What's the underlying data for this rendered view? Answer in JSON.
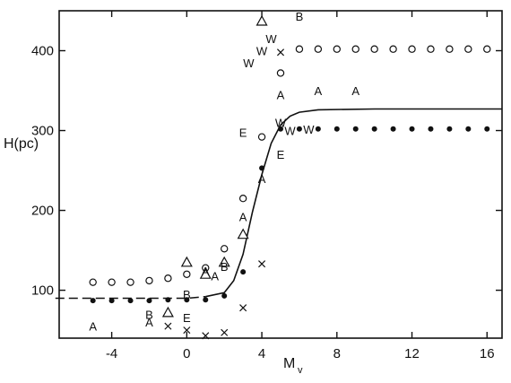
{
  "chart_data": {
    "type": "scatter",
    "title": "",
    "xlabel": {
      "main": "M",
      "sub": "v"
    },
    "ylabel": "H(pc)",
    "xlim": [
      -6.8,
      16.8
    ],
    "ylim": [
      40,
      450
    ],
    "xticks": [
      -4,
      0,
      4,
      8,
      12,
      16
    ],
    "xtick_labels": [
      "-4",
      "0",
      "4",
      "8",
      "12",
      "16"
    ],
    "yticks": [
      100,
      200,
      300,
      400
    ],
    "ytick_labels": [
      "100",
      "200",
      "300",
      "400"
    ],
    "grid": false,
    "legend": "none",
    "series": [
      {
        "marker": "open-circle",
        "points": [
          [
            -5,
            110
          ],
          [
            -4,
            110
          ],
          [
            -3,
            110
          ],
          [
            -2,
            112
          ],
          [
            -1,
            115
          ],
          [
            0,
            120
          ],
          [
            1,
            128
          ],
          [
            2,
            152
          ],
          [
            3,
            215
          ],
          [
            4,
            292
          ],
          [
            5,
            372
          ],
          [
            6,
            402
          ],
          [
            7,
            402
          ],
          [
            8,
            402
          ],
          [
            9,
            402
          ],
          [
            10,
            402
          ],
          [
            11,
            402
          ],
          [
            12,
            402
          ],
          [
            13,
            402
          ],
          [
            14,
            402
          ],
          [
            15,
            402
          ],
          [
            16,
            402
          ]
        ]
      },
      {
        "marker": "filled-dot",
        "points": [
          [
            -5,
            87
          ],
          [
            -4,
            87
          ],
          [
            -3,
            87
          ],
          [
            -2,
            87
          ],
          [
            -1,
            88
          ],
          [
            0,
            88
          ],
          [
            1,
            88
          ],
          [
            2,
            93
          ],
          [
            3,
            123
          ],
          [
            4,
            253
          ],
          [
            5,
            302
          ],
          [
            6,
            302
          ],
          [
            7,
            302
          ],
          [
            8,
            302
          ],
          [
            9,
            302
          ],
          [
            10,
            302
          ],
          [
            11,
            302
          ],
          [
            12,
            302
          ],
          [
            13,
            302
          ],
          [
            14,
            302
          ],
          [
            15,
            302
          ],
          [
            16,
            302
          ]
        ]
      },
      {
        "marker": "cross",
        "points": [
          [
            -1,
            55
          ],
          [
            0,
            50
          ],
          [
            1,
            43
          ],
          [
            2,
            47
          ],
          [
            3,
            78
          ],
          [
            4,
            133
          ],
          [
            5,
            398
          ]
        ]
      },
      {
        "marker": "triangle",
        "points": [
          [
            0,
            135
          ],
          [
            1,
            120
          ],
          [
            2,
            135
          ],
          [
            3,
            170
          ],
          [
            4,
            437
          ],
          [
            -1,
            72
          ]
        ]
      },
      {
        "marker": "letter",
        "points": [
          [
            -5,
            55,
            "A"
          ],
          [
            -2,
            70,
            "B"
          ],
          [
            -2,
            60,
            "A"
          ],
          [
            0,
            95,
            "B"
          ],
          [
            0,
            66,
            "E"
          ],
          [
            1,
            124,
            "A"
          ],
          [
            1.5,
            118,
            "A"
          ],
          [
            2,
            130,
            "B"
          ],
          [
            4,
            240,
            "A"
          ],
          [
            3,
            192,
            "A"
          ],
          [
            3,
            298,
            "E"
          ],
          [
            5,
            270,
            "E"
          ],
          [
            3.3,
            385,
            "W"
          ],
          [
            4,
            400,
            "W"
          ],
          [
            4.5,
            415,
            "W"
          ],
          [
            5,
            345,
            "A"
          ],
          [
            5,
            310,
            "W"
          ],
          [
            5.5,
            300,
            "W"
          ],
          [
            6.5,
            302,
            "W"
          ],
          [
            6,
            443,
            "B"
          ],
          [
            7,
            350,
            "A"
          ],
          [
            9,
            350,
            "A"
          ]
        ]
      }
    ],
    "curve": {
      "style": "solid-with-dashed-left",
      "points": [
        [
          -7,
          90
        ],
        [
          0,
          90
        ],
        [
          1,
          92
        ],
        [
          2,
          97
        ],
        [
          2.5,
          112
        ],
        [
          3,
          145
        ],
        [
          3.5,
          198
        ],
        [
          4,
          245
        ],
        [
          4.5,
          284
        ],
        [
          5,
          307
        ],
        [
          5.5,
          318
        ],
        [
          6,
          323
        ],
        [
          7,
          326
        ],
        [
          10,
          327
        ],
        [
          16.8,
          327
        ]
      ],
      "dash_until_x": 1
    }
  }
}
